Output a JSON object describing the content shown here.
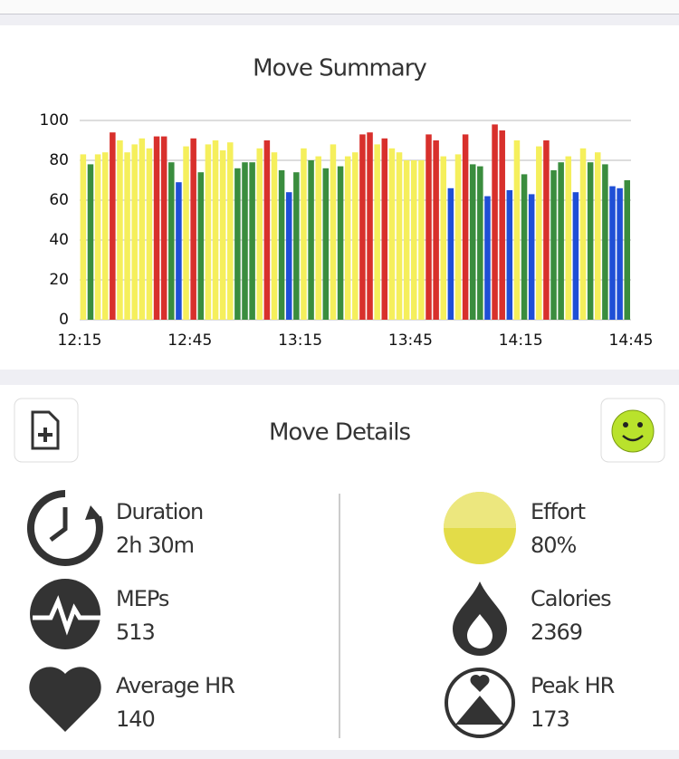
{
  "chart_data": {
    "type": "bar",
    "title": "Move Summary",
    "x": [
      0,
      2,
      4,
      6,
      8,
      10,
      12,
      14,
      16,
      18,
      20,
      22,
      24,
      26,
      28,
      30,
      32,
      34,
      36,
      38,
      40,
      42,
      44,
      46,
      48,
      50,
      52,
      54,
      56,
      58,
      60,
      62,
      64,
      66,
      68,
      70,
      72,
      74,
      76,
      78,
      80,
      82,
      84,
      86,
      88,
      90,
      92,
      94,
      96,
      98,
      100,
      102,
      104,
      106,
      108,
      110,
      112,
      114,
      116,
      118,
      120,
      122,
      124,
      126,
      128,
      130,
      132,
      134,
      136,
      138,
      140,
      142,
      144,
      146,
      148
    ],
    "values": [
      83,
      78,
      83,
      84,
      94,
      90,
      84,
      88,
      91,
      86,
      92,
      92,
      79,
      69,
      87,
      91,
      74,
      88,
      90,
      85,
      89,
      76,
      79,
      79,
      86,
      90,
      84,
      75,
      64,
      74,
      86,
      80,
      82,
      76,
      88,
      77,
      82,
      84,
      93,
      94,
      88,
      91,
      86,
      84,
      80,
      80,
      80,
      93,
      90,
      82,
      66,
      83,
      93,
      78,
      77,
      62,
      98,
      95,
      65,
      90,
      73,
      63,
      87,
      90,
      75,
      79,
      82,
      64,
      86,
      79,
      84,
      78,
      67,
      66,
      70
    ],
    "colors": [
      "#f5ef5c",
      "#3a8d3e",
      "#f5ef5c",
      "#f5ef5c",
      "#d8302c",
      "#f5ef5c",
      "#f5ef5c",
      "#f5ef5c",
      "#f5ef5c",
      "#f5ef5c",
      "#d8302c",
      "#d8302c",
      "#3a8d3e",
      "#1f4fd6",
      "#f5ef5c",
      "#d8302c",
      "#3a8d3e",
      "#f5ef5c",
      "#f5ef5c",
      "#f5ef5c",
      "#f5ef5c",
      "#3a8d3e",
      "#3a8d3e",
      "#3a8d3e",
      "#f5ef5c",
      "#d8302c",
      "#f5ef5c",
      "#3a8d3e",
      "#1f4fd6",
      "#3a8d3e",
      "#f5ef5c",
      "#3a8d3e",
      "#f5ef5c",
      "#3a8d3e",
      "#f5ef5c",
      "#3a8d3e",
      "#f5ef5c",
      "#f5ef5c",
      "#d8302c",
      "#d8302c",
      "#f5ef5c",
      "#d8302c",
      "#f5ef5c",
      "#f5ef5c",
      "#f5ef5c",
      "#f5ef5c",
      "#f5ef5c",
      "#d8302c",
      "#d8302c",
      "#f5ef5c",
      "#1f4fd6",
      "#f5ef5c",
      "#d8302c",
      "#3a8d3e",
      "#3a8d3e",
      "#1f4fd6",
      "#d8302c",
      "#d8302c",
      "#1f4fd6",
      "#f5ef5c",
      "#3a8d3e",
      "#1f4fd6",
      "#f5ef5c",
      "#d8302c",
      "#3a8d3e",
      "#3a8d3e",
      "#f5ef5c",
      "#1f4fd6",
      "#f5ef5c",
      "#3a8d3e",
      "#f5ef5c",
      "#3a8d3e",
      "#1f4fd6",
      "#1f4fd6",
      "#3a8d3e"
    ],
    "bar_width": 2,
    "xlim": [
      0,
      150
    ],
    "xticks": [
      {
        "value": 0,
        "label": "12:15"
      },
      {
        "value": 30,
        "label": "12:45"
      },
      {
        "value": 60,
        "label": "13:15"
      },
      {
        "value": 90,
        "label": "13:45"
      },
      {
        "value": 120,
        "label": "14:15"
      },
      {
        "value": 150,
        "label": "14:45"
      }
    ],
    "ylim": [
      0,
      100
    ],
    "yticks": [
      0,
      20,
      40,
      60,
      80,
      100
    ],
    "grid": true
  },
  "details": {
    "title": "Move Details",
    "items": [
      {
        "label": "Duration",
        "value": "2h 30m"
      },
      {
        "label": "Effort",
        "value": "80%"
      },
      {
        "label": "MEPs",
        "value": "513"
      },
      {
        "label": "Calories",
        "value": "2369"
      },
      {
        "label": "Average HR",
        "value": "140"
      },
      {
        "label": "Peak HR",
        "value": "173"
      }
    ]
  }
}
